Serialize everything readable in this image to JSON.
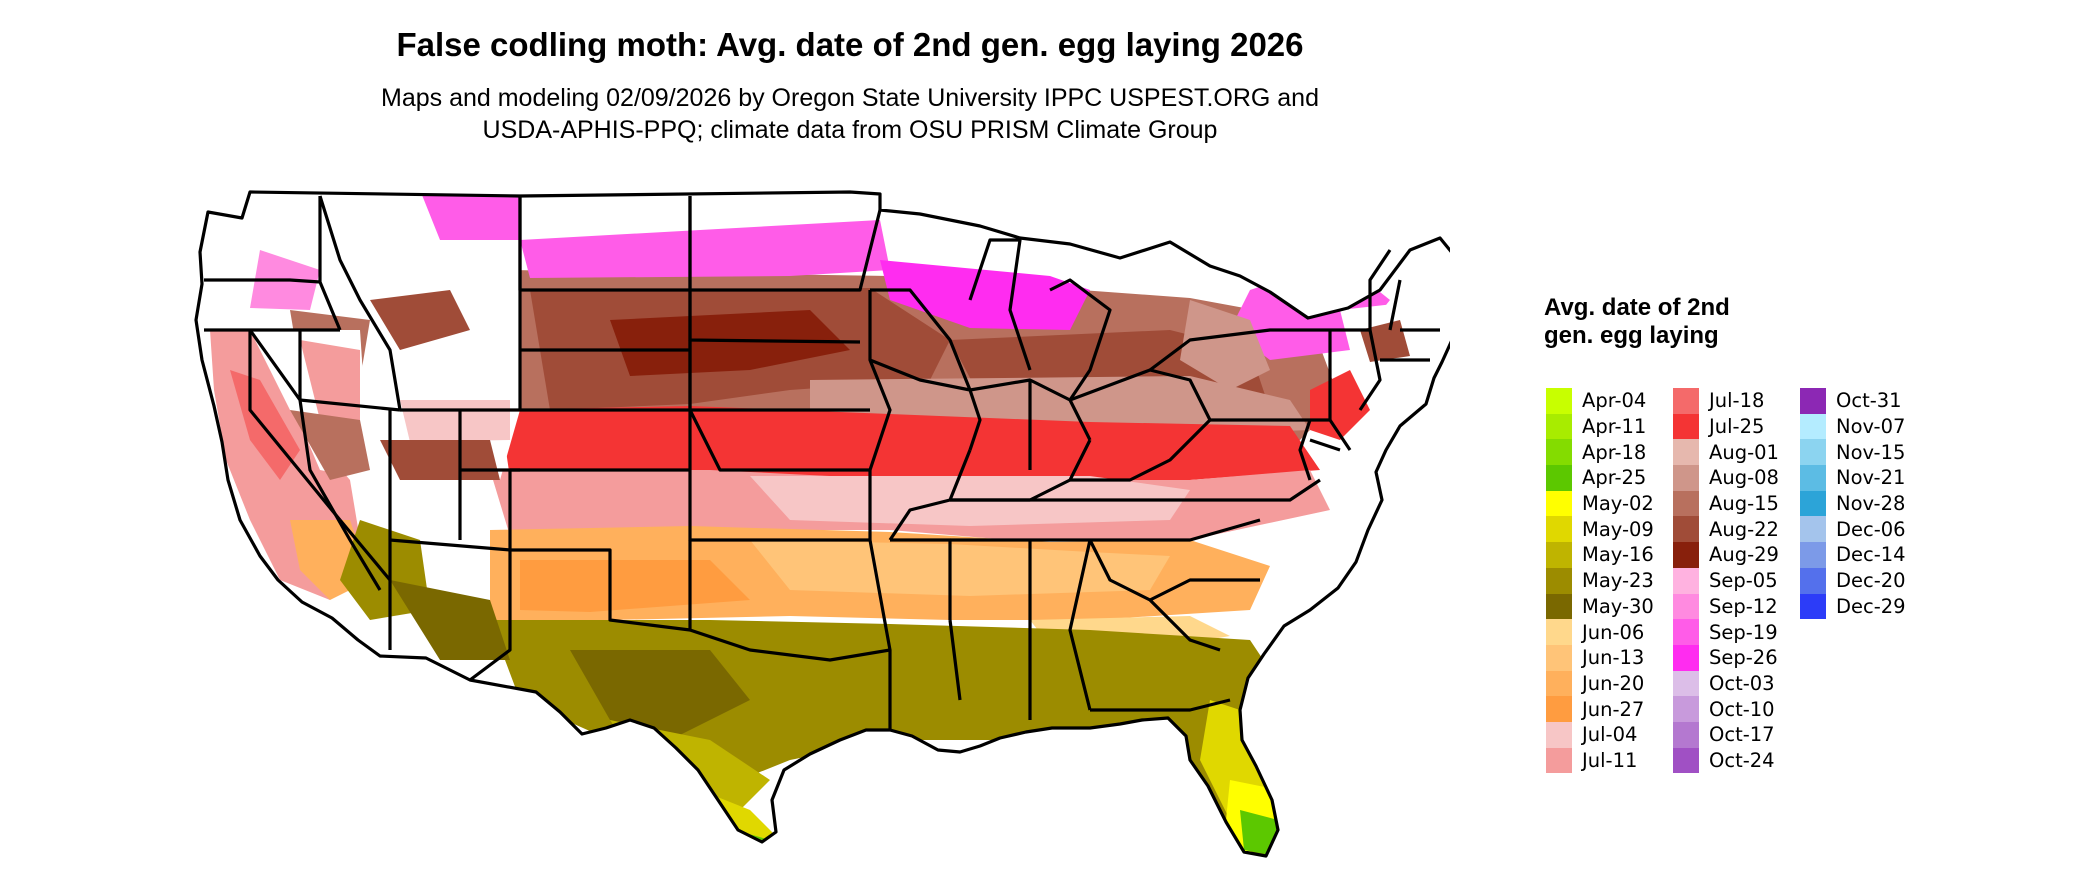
{
  "title": "False codling moth: Avg. date of 2nd gen. egg laying 2026",
  "subtitle_line1": "Maps and modeling 02/09/2026 by Oregon State University IPPC USPEST.ORG and",
  "subtitle_line2": "USDA-APHIS-PPQ; climate data from OSU PRISM Climate Group",
  "legend": {
    "title": "Avg. date of 2nd gen. egg laying",
    "items": [
      {
        "label": "Apr-04",
        "color": "#c8ff00"
      },
      {
        "label": "Apr-11",
        "color": "#a8ec00"
      },
      {
        "label": "Apr-18",
        "color": "#84dc00"
      },
      {
        "label": "Apr-25",
        "color": "#5cc800"
      },
      {
        "label": "May-02",
        "color": "#ffff00"
      },
      {
        "label": "May-09",
        "color": "#e0d800"
      },
      {
        "label": "May-16",
        "color": "#bfb400"
      },
      {
        "label": "May-23",
        "color": "#9c8c00"
      },
      {
        "label": "May-30",
        "color": "#7a6800"
      },
      {
        "label": "Jun-06",
        "color": "#ffd88c"
      },
      {
        "label": "Jun-13",
        "color": "#ffc478"
      },
      {
        "label": "Jun-20",
        "color": "#ffb05c"
      },
      {
        "label": "Jun-27",
        "color": "#ff9c40"
      },
      {
        "label": "Jul-04",
        "color": "#f7c6c6"
      },
      {
        "label": "Jul-11",
        "color": "#f49c9c"
      },
      {
        "label": "Jul-18",
        "color": "#f46a6a"
      },
      {
        "label": "Jul-25",
        "color": "#f43434"
      },
      {
        "label": "Aug-01",
        "color": "#e6b8ae"
      },
      {
        "label": "Aug-08",
        "color": "#cf968a"
      },
      {
        "label": "Aug-15",
        "color": "#b8705e"
      },
      {
        "label": "Aug-22",
        "color": "#a04c38"
      },
      {
        "label": "Aug-29",
        "color": "#88200c"
      },
      {
        "label": "Sep-05",
        "color": "#ffb2e0"
      },
      {
        "label": "Sep-12",
        "color": "#ff8ae0"
      },
      {
        "label": "Sep-19",
        "color": "#ff5ce8"
      },
      {
        "label": "Sep-26",
        "color": "#ff2cf0"
      },
      {
        "label": "Oct-03",
        "color": "#dcbee8"
      },
      {
        "label": "Oct-10",
        "color": "#c89adc"
      },
      {
        "label": "Oct-17",
        "color": "#b478d0"
      },
      {
        "label": "Oct-24",
        "color": "#a050c4"
      },
      {
        "label": "Oct-31",
        "color": "#8c28b4"
      },
      {
        "label": "Nov-07",
        "color": "#b4ecff"
      },
      {
        "label": "Nov-15",
        "color": "#8cd4f0"
      },
      {
        "label": "Nov-21",
        "color": "#5cbce4"
      },
      {
        "label": "Nov-28",
        "color": "#2ca4d8"
      },
      {
        "label": "Dec-06",
        "color": "#a4c4ec"
      },
      {
        "label": "Dec-14",
        "color": "#7c9ae8"
      },
      {
        "label": "Dec-20",
        "color": "#5470ec"
      },
      {
        "label": "Dec-29",
        "color": "#2c3cf8"
      }
    ]
  }
}
